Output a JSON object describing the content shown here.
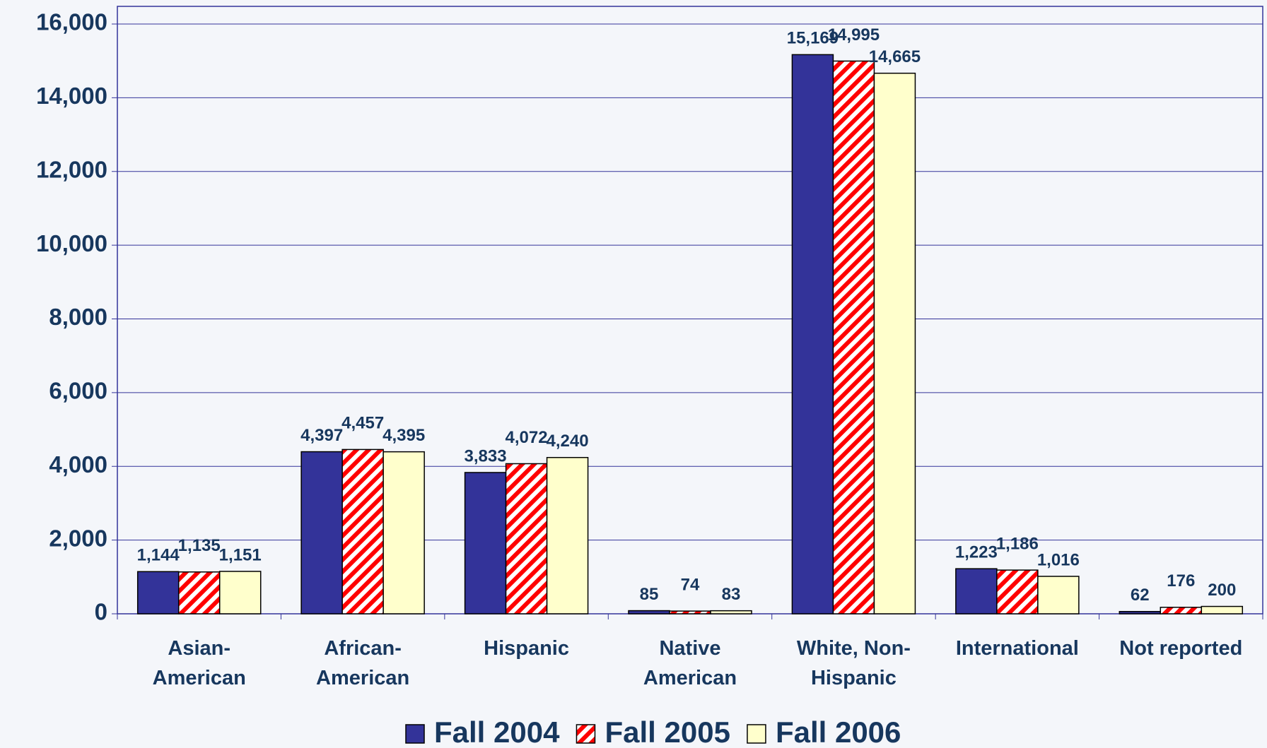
{
  "chart_data": {
    "type": "bar",
    "categories": [
      "Asian-\nAmerican",
      "African-\nAmerican",
      "Hispanic",
      "Native\nAmerican",
      "White, Non-\nHispanic",
      "International",
      "Not reported"
    ],
    "series": [
      {
        "name": "Fall 2004",
        "color": "#333399",
        "values": [
          1144,
          4397,
          3833,
          85,
          15169,
          1223,
          62
        ],
        "value_labels": [
          "1,144",
          "4,397",
          "3,833",
          "85",
          "15,169",
          "1,223",
          "62"
        ]
      },
      {
        "name": "Fall 2005",
        "color": "#ff0000",
        "pattern": "hatch",
        "values": [
          1135,
          4457,
          4072,
          74,
          14995,
          1186,
          176
        ],
        "value_labels": [
          "1,135",
          "4,457",
          "4,072",
          "74",
          "14,995",
          "1,186",
          "176"
        ]
      },
      {
        "name": "Fall 2006",
        "color": "#ffffcc",
        "values": [
          1151,
          4395,
          4240,
          83,
          14665,
          1016,
          200
        ],
        "value_labels": [
          "1,151",
          "4,395",
          "4,240",
          "83",
          "14,665",
          "1,016",
          "200"
        ]
      }
    ],
    "ylim": [
      0,
      16000
    ],
    "yticks": [
      0,
      {
        "value": 2000,
        "label": "2,000"
      },
      {
        "value": 4000,
        "label": "4,000"
      },
      {
        "value": 6000,
        "label": "6,000"
      },
      {
        "value": 8000,
        "label": "8,000"
      },
      {
        "value": 10000,
        "label": "10,000"
      },
      {
        "value": 12000,
        "label": "12,000"
      },
      {
        "value": 14000,
        "label": "14,000"
      },
      {
        "value": 16000,
        "label": "16,000"
      }
    ],
    "grid": true,
    "legend": "bottom"
  }
}
